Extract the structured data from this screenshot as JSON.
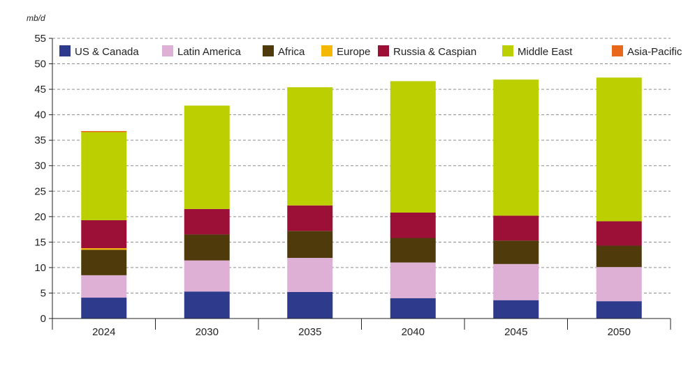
{
  "chart_data": {
    "type": "bar",
    "stacked": true,
    "unit_label": "mb/d",
    "categories": [
      "2024",
      "2030",
      "2035",
      "2040",
      "2045",
      "2050"
    ],
    "ylim": [
      0,
      55
    ],
    "y_ticks": [
      "0",
      "5",
      "10",
      "15",
      "20",
      "25",
      "30",
      "35",
      "40",
      "45",
      "50",
      "55"
    ],
    "grid": "horizontal dashed",
    "legend_position": "top",
    "series": [
      {
        "name": "US & Canada",
        "color": "#2e3a8c",
        "values": [
          4.1,
          5.3,
          5.2,
          4.0,
          3.6,
          3.4
        ]
      },
      {
        "name": "Latin America",
        "color": "#deb0d6",
        "values": [
          4.4,
          6.1,
          6.7,
          7.0,
          7.1,
          6.7
        ]
      },
      {
        "name": "Africa",
        "color": "#4e3a0b",
        "values": [
          5.0,
          5.1,
          5.3,
          4.8,
          4.6,
          4.2
        ]
      },
      {
        "name": "Europe",
        "color": "#f5b800",
        "values": [
          0.3,
          0.0,
          0.0,
          0.0,
          0.0,
          0.0
        ]
      },
      {
        "name": "Russia & Caspian",
        "color": "#9c1038",
        "values": [
          5.5,
          5.0,
          5.0,
          5.0,
          4.9,
          4.8
        ]
      },
      {
        "name": "Middle East",
        "color": "#bccf00",
        "values": [
          17.3,
          20.3,
          23.2,
          25.8,
          26.7,
          28.2
        ]
      },
      {
        "name": "Asia-Pacific",
        "color": "#e8671b",
        "values": [
          0.2,
          0.0,
          0.0,
          0.0,
          0.0,
          0.0
        ]
      }
    ]
  }
}
